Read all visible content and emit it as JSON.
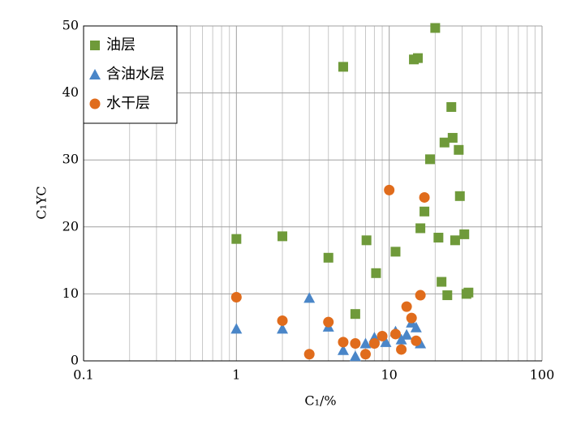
{
  "chart_data": {
    "type": "scatter",
    "x_label": "C₁/%",
    "y_label": "C₁YC",
    "xlim": [
      0.1,
      100
    ],
    "xticks": [
      0.1,
      1,
      10,
      100
    ],
    "x_log": true,
    "ylim": [
      0,
      50
    ],
    "yticks": [
      0,
      10,
      20,
      30,
      40,
      50
    ],
    "grid": true,
    "legend": "upper left",
    "series": [
      {
        "name": "油层",
        "color": "#6f9a3a",
        "marker": "square",
        "x": [
          1,
          2,
          4,
          5,
          6,
          7.1,
          8.2,
          11,
          14.5,
          15.4,
          16,
          17,
          18.5,
          20,
          21,
          22,
          23,
          24,
          25.5,
          26,
          27,
          28.5,
          29,
          31,
          32,
          33
        ],
        "values": [
          18.2,
          18.6,
          15.4,
          43.9,
          7.0,
          18.0,
          13.1,
          16.3,
          45.0,
          45.2,
          19.8,
          22.3,
          30.1,
          49.7,
          18.4,
          11.8,
          32.6,
          9.8,
          37.9,
          33.3,
          18.0,
          31.5,
          24.6,
          18.9,
          10.0,
          10.2
        ]
      },
      {
        "name": "含油水层",
        "color": "#4a86c8",
        "marker": "triangle",
        "x": [
          1,
          2,
          3,
          4,
          5,
          6,
          7,
          8,
          9.5,
          11,
          12,
          13,
          14,
          15,
          16
        ],
        "values": [
          4.8,
          4.8,
          9.4,
          5.1,
          1.6,
          0.7,
          2.6,
          3.5,
          2.8,
          4.4,
          3.2,
          3.9,
          5.7,
          5.0,
          2.6
        ]
      },
      {
        "name": "水干层",
        "color": "#e06c1c",
        "marker": "circle",
        "x": [
          1,
          2,
          3,
          4,
          5,
          6,
          7,
          8,
          9,
          10,
          11,
          12,
          13,
          14,
          15,
          16,
          17
        ],
        "values": [
          9.5,
          6.0,
          1.0,
          5.8,
          2.8,
          2.6,
          1.0,
          2.6,
          3.7,
          25.5,
          4.0,
          1.7,
          8.1,
          6.4,
          3.0,
          9.8,
          24.4
        ]
      }
    ]
  }
}
